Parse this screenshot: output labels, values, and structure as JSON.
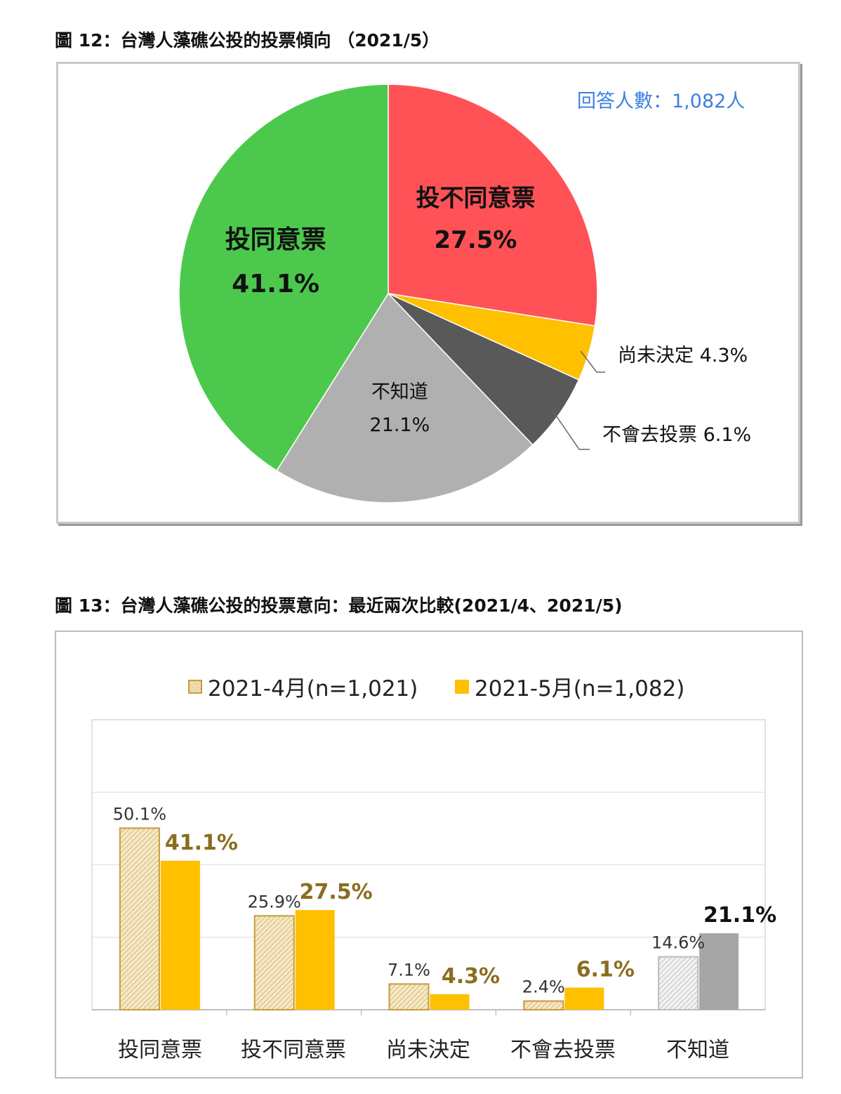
{
  "figure12": {
    "title": "圖 12：台灣人藻礁公投的投票傾向 （2021/5）",
    "respondents": "回答人數：1,082人"
  },
  "figure13": {
    "title": "圖 13：台灣人藻礁公投的投票意向：最近兩次比較(2021/4、2021/5)"
  },
  "chart_data": [
    {
      "type": "pie",
      "title": "圖 12：台灣人藻礁公投的投票傾向 （2021/5）",
      "annotation": "回答人數：1,082人",
      "slices": [
        {
          "label": "投不同意票",
          "value": 27.5,
          "display": "27.5%",
          "color": "#ff5257"
        },
        {
          "label": "尚未決定",
          "value": 4.3,
          "display": "4.3%",
          "color": "#ffc000"
        },
        {
          "label": "不會去投票",
          "value": 6.1,
          "display": "6.1%",
          "color": "#595959"
        },
        {
          "label": "不知道",
          "value": 21.1,
          "display": "21.1%",
          "color": "#b0b0b0"
        },
        {
          "label": "投同意票",
          "value": 41.1,
          "display": "41.1%",
          "color": "#4cc94c"
        }
      ]
    },
    {
      "type": "bar",
      "title": "圖 13：台灣人藻礁公投的投票意向：最近兩次比較(2021/4、2021/5)",
      "categories": [
        "投同意票",
        "投不同意票",
        "尚未決定",
        "不會去投票",
        "不知道"
      ],
      "series": [
        {
          "name": "2021-4月(n=1,021)",
          "values": [
            50.1,
            25.9,
            7.1,
            2.4,
            14.6
          ],
          "labels": [
            "50.1%",
            "25.9%",
            "7.1%",
            "2.4%",
            "14.6%"
          ]
        },
        {
          "name": "2021-5月(n=1,082)",
          "values": [
            41.1,
            27.5,
            4.3,
            6.1,
            21.1
          ],
          "labels": [
            "41.1%",
            "27.5%",
            "4.3%",
            "6.1%",
            "21.1%"
          ]
        }
      ],
      "ylim": [
        0,
        80
      ],
      "grid": true,
      "legend": "top"
    }
  ]
}
